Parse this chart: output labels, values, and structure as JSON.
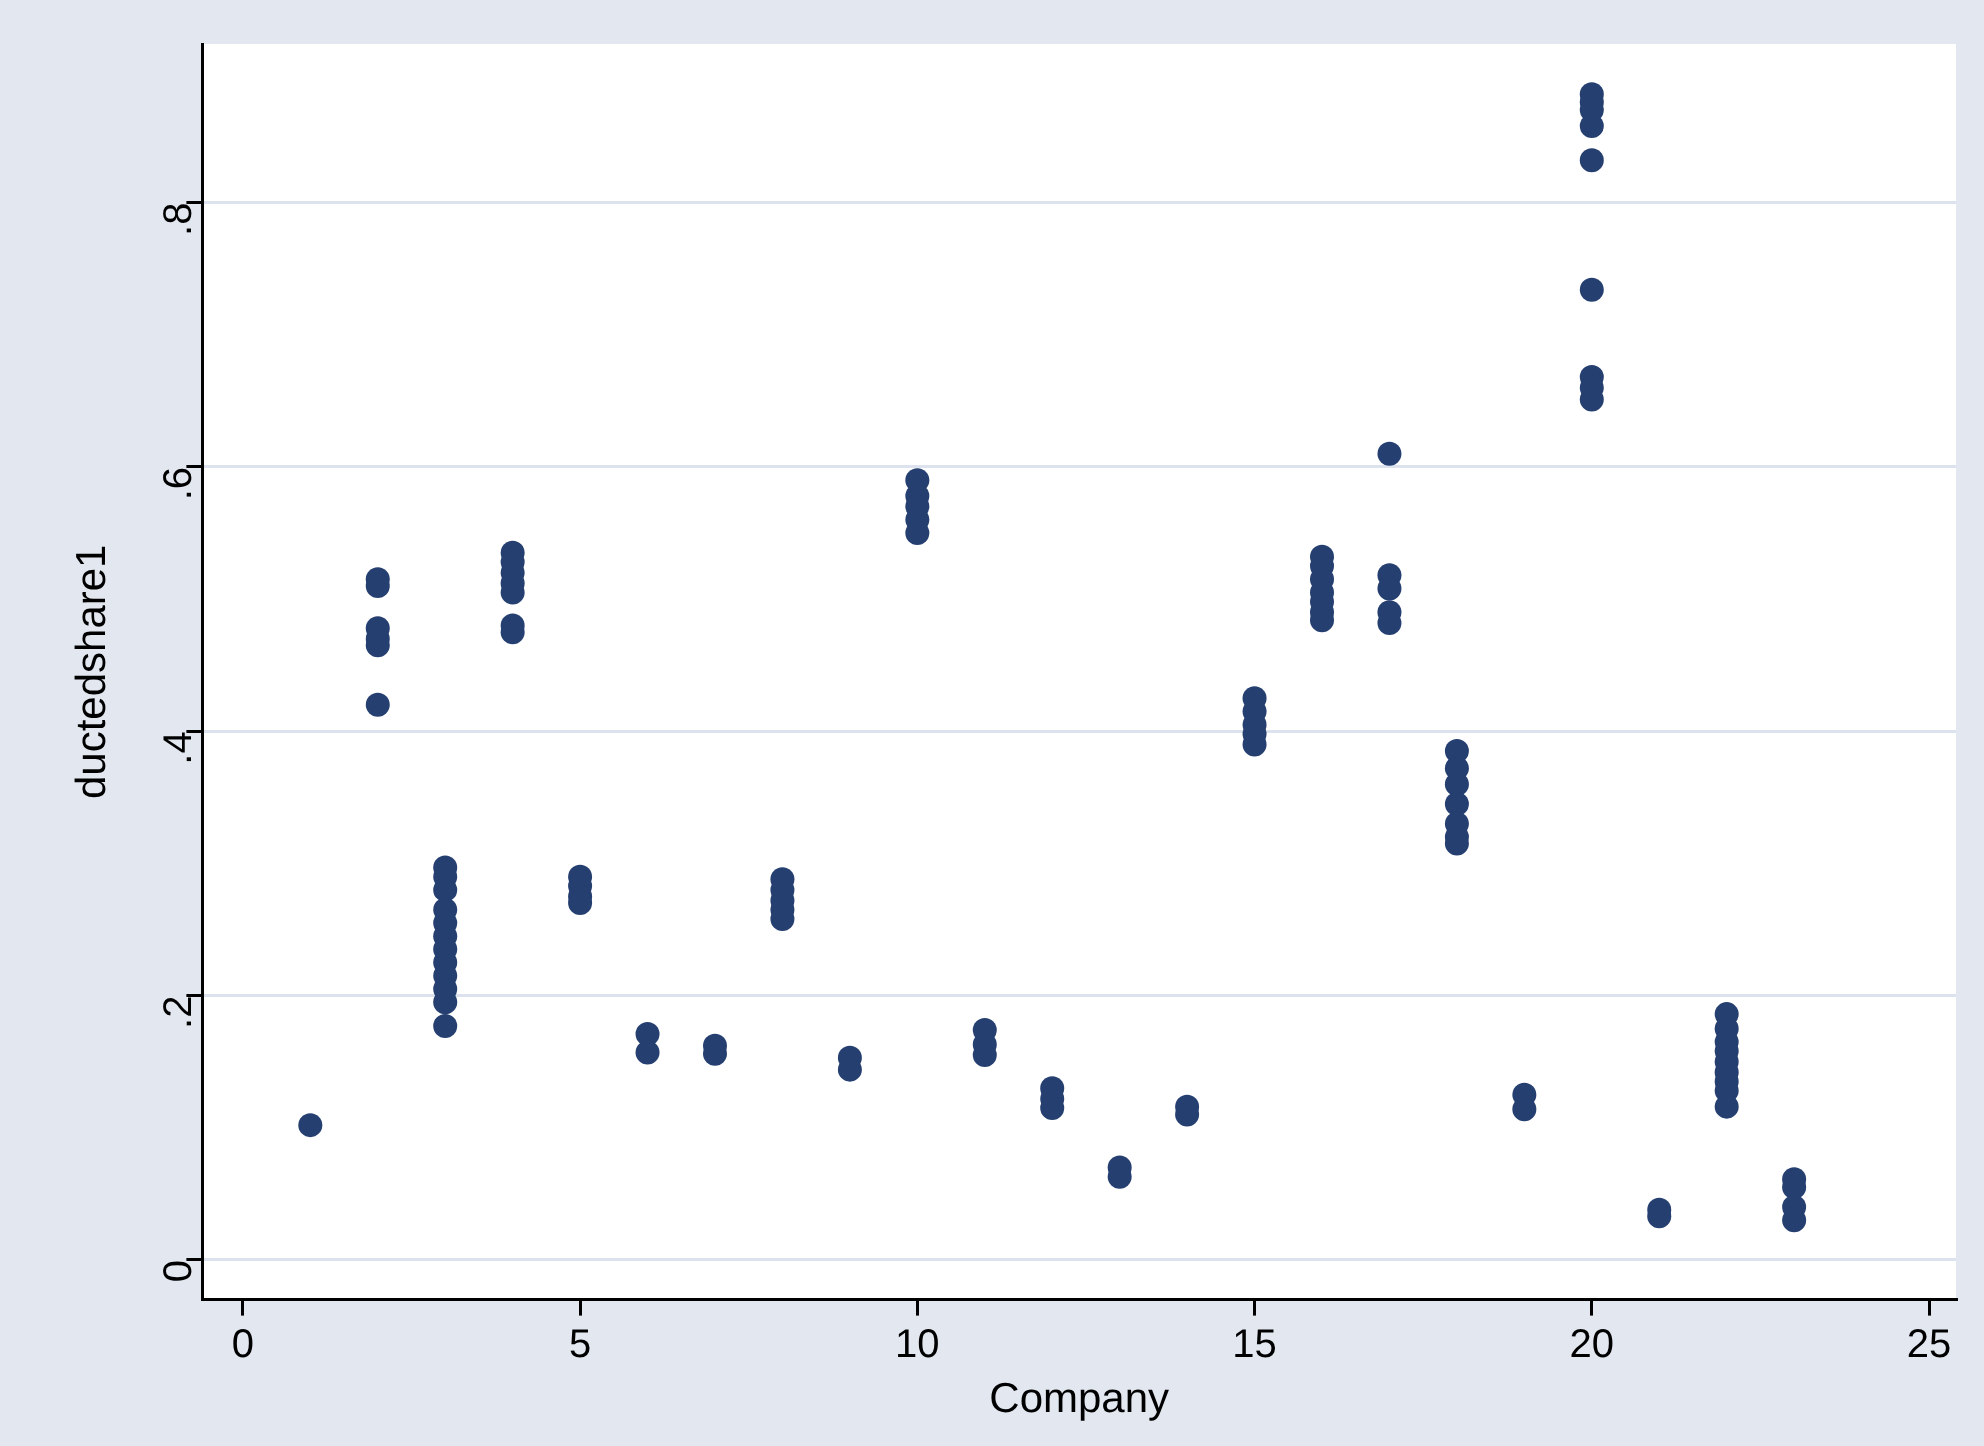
{
  "chart_data": {
    "type": "scatter",
    "xlabel": "Company",
    "ylabel": "ductedshare1",
    "xlim": [
      -0.6,
      25.4
    ],
    "xticks": [
      0,
      5,
      10,
      15,
      20,
      25
    ],
    "ylim": [
      -0.03,
      0.92
    ],
    "yticks": [
      0,
      {
        "value": 0.2,
        "label": ".2"
      },
      {
        "value": 0.4,
        "label": ".4"
      },
      {
        "value": 0.6,
        "label": ".6"
      },
      {
        "value": 0.8,
        "label": ".8"
      }
    ],
    "grid": "y",
    "legend": false,
    "marker": "circle",
    "series": [
      {
        "color": "#253f70",
        "x": [
          1,
          2,
          2,
          2,
          2,
          2,
          2,
          3,
          3,
          3,
          3,
          3,
          3,
          3,
          3,
          3,
          3,
          3,
          3,
          4,
          4,
          4,
          4,
          4,
          4,
          4,
          5,
          5,
          5,
          5,
          6,
          6,
          7,
          7,
          8,
          8,
          8,
          8,
          8,
          9,
          9,
          10,
          10,
          10,
          10,
          10,
          11,
          11,
          11,
          12,
          12,
          12,
          13,
          13,
          14,
          14,
          15,
          15,
          15,
          15,
          15,
          16,
          16,
          16,
          16,
          16,
          16,
          16,
          17,
          17,
          17,
          17,
          17,
          18,
          18,
          18,
          18,
          18,
          18,
          18,
          19,
          19,
          20,
          20,
          20,
          20,
          20,
          20,
          20,
          20,
          20,
          21,
          21,
          22,
          22,
          22,
          22,
          22,
          22,
          22,
          22,
          22,
          23,
          23,
          23,
          23
        ],
        "values": [
          0.102,
          0.515,
          0.51,
          0.478,
          0.47,
          0.465,
          0.42,
          0.297,
          0.29,
          0.28,
          0.265,
          0.255,
          0.245,
          0.235,
          0.225,
          0.215,
          0.205,
          0.195,
          0.177,
          0.535,
          0.528,
          0.52,
          0.512,
          0.505,
          0.48,
          0.475,
          0.29,
          0.283,
          0.275,
          0.27,
          0.171,
          0.157,
          0.162,
          0.156,
          0.288,
          0.28,
          0.272,
          0.265,
          0.258,
          0.153,
          0.144,
          0.59,
          0.578,
          0.57,
          0.56,
          0.55,
          0.174,
          0.163,
          0.155,
          0.13,
          0.122,
          0.115,
          0.07,
          0.063,
          0.116,
          0.11,
          0.425,
          0.415,
          0.405,
          0.398,
          0.39,
          0.532,
          0.525,
          0.515,
          0.505,
          0.498,
          0.49,
          0.484,
          0.61,
          0.518,
          0.508,
          0.49,
          0.482,
          0.385,
          0.372,
          0.36,
          0.345,
          0.33,
          0.32,
          0.315,
          0.125,
          0.114,
          0.882,
          0.876,
          0.87,
          0.858,
          0.832,
          0.734,
          0.668,
          0.66,
          0.651,
          0.038,
          0.033,
          0.186,
          0.175,
          0.165,
          0.158,
          0.15,
          0.142,
          0.135,
          0.128,
          0.116,
          0.061,
          0.055,
          0.04,
          0.03
        ]
      }
    ]
  }
}
